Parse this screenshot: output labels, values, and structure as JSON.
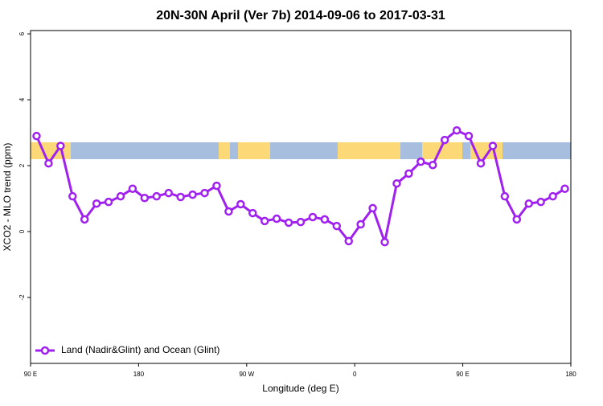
{
  "chart_data": {
    "type": "line",
    "title": "20N-30N April (Ver 7b)   2014-09-06 to 2017-03-31",
    "xlabel": "Longitude (deg E)",
    "ylabel": "XCO2 - MLO trend (ppm)",
    "x": [
      95,
      105,
      115,
      125,
      135,
      145,
      155,
      165,
      175,
      185,
      195,
      205,
      215,
      225,
      235,
      245,
      255,
      265,
      275,
      285,
      295,
      305,
      315,
      325,
      335,
      345,
      355,
      365,
      375,
      385,
      395,
      405,
      415,
      425,
      435,
      445,
      455,
      465,
      475,
      485,
      495,
      505,
      515,
      525,
      535
    ],
    "series": [
      {
        "name": "Land (Nadir&Glint) and Ocean (Glint)",
        "color": "#a020f0",
        "values": [
          2.9,
          2.07,
          2.6,
          1.07,
          0.37,
          0.85,
          0.9,
          1.07,
          1.3,
          1.02,
          1.07,
          1.17,
          1.05,
          1.12,
          1.17,
          1.39,
          0.61,
          0.83,
          0.56,
          0.32,
          0.39,
          0.27,
          0.29,
          0.44,
          0.37,
          0.17,
          -0.29,
          0.22,
          0.71,
          -0.32,
          1.46,
          1.76,
          2.12,
          2.02,
          2.78,
          3.07,
          2.9,
          2.07,
          2.6,
          1.07,
          0.37,
          0.85,
          0.9,
          1.07,
          1.3
        ]
      }
    ],
    "xlim": [
      90,
      540
    ],
    "xticks": [
      {
        "value": 90,
        "label": "90 E"
      },
      180,
      {
        "value": 270,
        "label": "90 W"
      },
      {
        "value": 360,
        "label": "0"
      },
      {
        "value": 450,
        "label": "90 E"
      },
      {
        "value": 540,
        "label": "180"
      }
    ],
    "ylim": [
      -4,
      6.1
    ],
    "yticks": [
      -2,
      0,
      2,
      4,
      6
    ],
    "legend": "bottom-left"
  }
}
